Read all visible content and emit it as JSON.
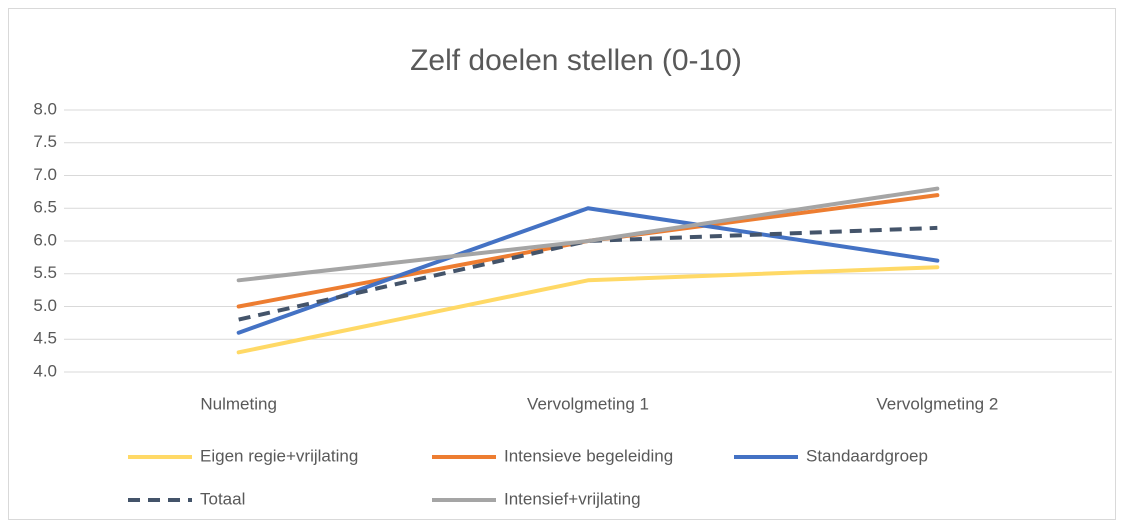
{
  "chart_data": {
    "type": "line",
    "title": "Zelf doelen stellen (0-10)",
    "categories": [
      "Nulmeting",
      "Vervolgmeting 1",
      "Vervolgmeting 2"
    ],
    "series": [
      {
        "name": "Eigen regie+vrijlating",
        "color": "#ffd966",
        "values": [
          4.3,
          5.4,
          5.6
        ]
      },
      {
        "name": "Intensieve begeleiding",
        "color": "#ed7d31",
        "values": [
          5.0,
          6.0,
          6.7
        ]
      },
      {
        "name": "Standaardgroep",
        "color": "#4472c4",
        "values": [
          4.6,
          6.5,
          5.7
        ]
      },
      {
        "name": "Totaal",
        "color": "#44546a",
        "dashed": true,
        "values": [
          4.8,
          6.0,
          6.2
        ]
      },
      {
        "name": "Intensief+vrijlating",
        "color": "#a5a5a5",
        "values": [
          5.4,
          6.0,
          6.8
        ]
      }
    ],
    "ylim": [
      4,
      8
    ],
    "yticks": [
      {
        "value": 4,
        "label": "4.0"
      },
      {
        "value": 4.5,
        "label": "4.5"
      },
      {
        "value": 5,
        "label": "5.0"
      },
      {
        "value": 5.5,
        "label": "5.5"
      },
      {
        "value": 6,
        "label": "6.0"
      },
      {
        "value": 6.5,
        "label": "6.5"
      },
      {
        "value": 7,
        "label": "7.0"
      },
      {
        "value": 7.5,
        "label": "7.5"
      },
      {
        "value": 8,
        "label": "8.0"
      }
    ],
    "grid": true,
    "legend": "bottom"
  }
}
